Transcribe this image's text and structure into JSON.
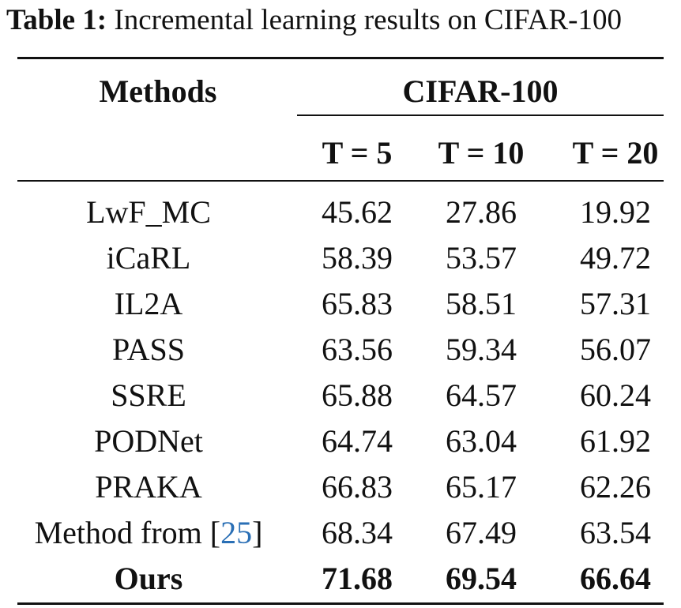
{
  "caption": {
    "label": "Table 1:",
    "text": "Incremental learning results on CIFAR-100"
  },
  "table": {
    "methods_header": "Methods",
    "dataset_header": "CIFAR-100",
    "columns": [
      "T = 5",
      "T = 10",
      "T = 20"
    ],
    "rows": [
      {
        "method": "LwF_MC",
        "values": [
          "45.62",
          "27.86",
          "19.92"
        ]
      },
      {
        "method": "iCaRL",
        "values": [
          "58.39",
          "53.57",
          "49.72"
        ]
      },
      {
        "method": "IL2A",
        "values": [
          "65.83",
          "58.51",
          "57.31"
        ]
      },
      {
        "method": "PASS",
        "values": [
          "63.56",
          "59.34",
          "56.07"
        ]
      },
      {
        "method": "SSRE",
        "values": [
          "65.88",
          "64.57",
          "60.24"
        ]
      },
      {
        "method": "PODNet",
        "values": [
          "64.74",
          "63.04",
          "61.92"
        ]
      },
      {
        "method": "PRAKA",
        "values": [
          "66.83",
          "65.17",
          "62.26"
        ]
      },
      {
        "method": "Method from [",
        "cite": "25",
        "method_suffix": "]",
        "values": [
          "68.34",
          "67.49",
          "63.54"
        ]
      },
      {
        "method": "Ours",
        "values": [
          "71.68",
          "69.54",
          "66.64"
        ],
        "bold": true
      }
    ]
  }
}
